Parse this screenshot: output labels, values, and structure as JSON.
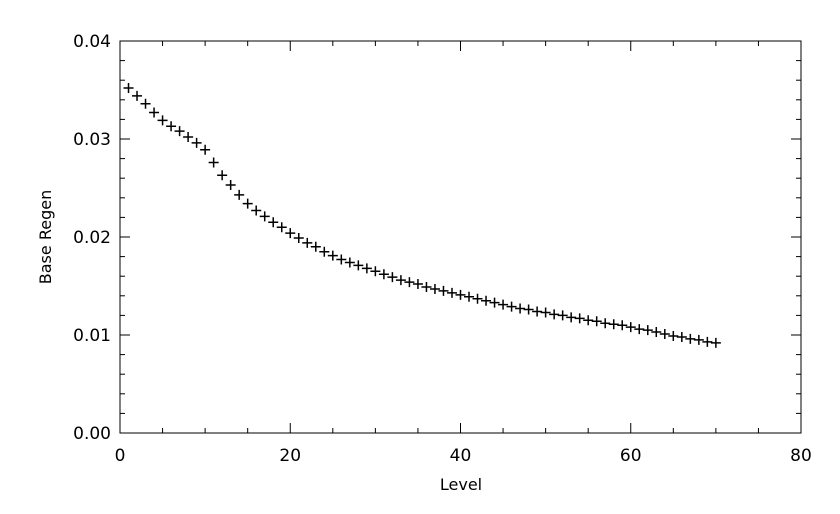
{
  "chart_data": {
    "type": "scatter",
    "title": "",
    "xlabel": "Level",
    "ylabel": "Base Regen",
    "xlim": [
      0,
      80
    ],
    "ylim": [
      0.0,
      0.04
    ],
    "x_ticks": [
      "0",
      "20",
      "40",
      "60",
      "80"
    ],
    "y_ticks": [
      "0.00",
      "0.01",
      "0.02",
      "0.03",
      "0.04"
    ],
    "marker": "plus",
    "color": "#000000",
    "grid": false,
    "series": [
      {
        "x": [
          1,
          2,
          3,
          4,
          5,
          6,
          7,
          8,
          9,
          10,
          11,
          12,
          13,
          14,
          15,
          16,
          17,
          18,
          19,
          20,
          21,
          22,
          23,
          24,
          25,
          26,
          27,
          28,
          29,
          30,
          31,
          32,
          33,
          34,
          35,
          36,
          37,
          38,
          39,
          40,
          41,
          42,
          43,
          44,
          45,
          46,
          47,
          48,
          49,
          50,
          51,
          52,
          53,
          54,
          55,
          56,
          57,
          58,
          59,
          60,
          61,
          62,
          63,
          64,
          65,
          66,
          67,
          68,
          69,
          70
        ],
        "y": [
          0.0352,
          0.0344,
          0.0336,
          0.0327,
          0.0319,
          0.0313,
          0.0308,
          0.0302,
          0.0296,
          0.0289,
          0.0276,
          0.0263,
          0.0253,
          0.0243,
          0.0234,
          0.0227,
          0.0221,
          0.0215,
          0.021,
          0.0204,
          0.0199,
          0.0194,
          0.019,
          0.0185,
          0.0181,
          0.0177,
          0.0174,
          0.0171,
          0.0168,
          0.0165,
          0.0162,
          0.0159,
          0.0156,
          0.0154,
          0.0152,
          0.0149,
          0.0147,
          0.0145,
          0.0143,
          0.0141,
          0.0139,
          0.0137,
          0.0135,
          0.0133,
          0.0131,
          0.0129,
          0.0127,
          0.0126,
          0.0124,
          0.0123,
          0.0121,
          0.012,
          0.0118,
          0.0117,
          0.0115,
          0.0114,
          0.0112,
          0.0111,
          0.011,
          0.0108,
          0.0106,
          0.0105,
          0.0103,
          0.0101,
          0.0099,
          0.0098,
          0.0096,
          0.0095,
          0.0093,
          0.0092
        ]
      }
    ]
  }
}
